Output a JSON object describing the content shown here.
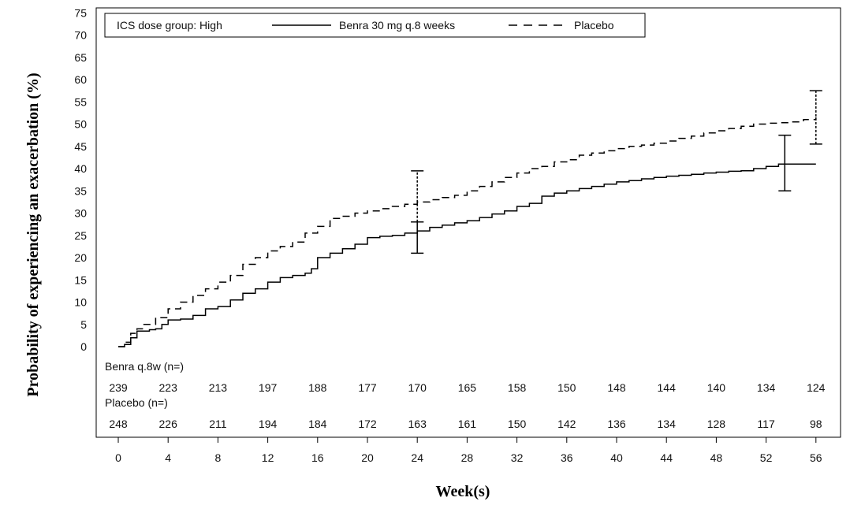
{
  "chart_data": {
    "type": "line",
    "xlabel": "Week(s)",
    "ylabel": "Probability of experiencing an exacerbation (%)",
    "xlim": [
      0,
      57
    ],
    "ylim": [
      0,
      75
    ],
    "x_ticks": [
      0,
      4,
      8,
      12,
      16,
      20,
      24,
      28,
      32,
      36,
      40,
      44,
      48,
      52,
      56
    ],
    "y_ticks": [
      0,
      5,
      10,
      15,
      20,
      25,
      30,
      35,
      40,
      45,
      50,
      55,
      60,
      65,
      70,
      75
    ],
    "legend": {
      "title": "ICS dose group: High",
      "placement": "top-left",
      "entries": [
        {
          "label": "Benra 30 mg q.8 weeks",
          "style": "solid"
        },
        {
          "label": "Placebo",
          "style": "dashed"
        }
      ]
    },
    "series": [
      {
        "name": "Benra 30 mg q.8 weeks",
        "style": "solid",
        "color": "#000000",
        "x": [
          0,
          0.5,
          1,
          1.5,
          2.5,
          3,
          3.5,
          4,
          5,
          6,
          7,
          8,
          9,
          10,
          11,
          12,
          13,
          14,
          15,
          15.5,
          16,
          17,
          18,
          19,
          20,
          21,
          22,
          23,
          24,
          25,
          26,
          27,
          28,
          29,
          30,
          31,
          32,
          33,
          34,
          35,
          36,
          37,
          38,
          39,
          40,
          41,
          42,
          43,
          44,
          45,
          46,
          47,
          48,
          49,
          50,
          51,
          52,
          53,
          54,
          55,
          56
        ],
        "y": [
          0,
          0.5,
          2,
          3.5,
          3.8,
          4,
          5,
          6,
          6.2,
          7,
          8.5,
          9,
          10.5,
          12,
          13,
          14.5,
          15.5,
          16,
          16.5,
          17.5,
          20,
          21,
          22,
          23,
          24.5,
          24.8,
          25,
          25.5,
          26,
          26.8,
          27.3,
          27.8,
          28.3,
          29,
          29.8,
          30.5,
          31.5,
          32.2,
          33.8,
          34.5,
          35,
          35.5,
          36,
          36.5,
          37,
          37.3,
          37.7,
          38,
          38.3,
          38.5,
          38.7,
          39,
          39.2,
          39.4,
          39.5,
          40,
          40.5,
          41,
          41,
          41,
          41
        ]
      },
      {
        "name": "Placebo",
        "style": "dashed",
        "color": "#000000",
        "x": [
          0,
          0.5,
          1,
          1.5,
          2,
          3,
          4,
          5,
          6,
          7,
          8,
          9,
          10,
          11,
          12,
          13,
          14,
          15,
          16,
          17,
          18,
          19,
          20,
          21,
          22,
          23,
          24,
          25,
          26,
          27,
          28,
          29,
          30,
          31,
          32,
          33,
          34,
          35,
          36,
          37,
          38,
          39,
          40,
          41,
          42,
          43,
          44,
          45,
          46,
          47,
          48,
          49,
          50,
          51,
          52,
          53,
          54,
          55,
          56
        ],
        "y": [
          0,
          1,
          3,
          4,
          5,
          6.5,
          8.5,
          10,
          11.5,
          13,
          14.5,
          16,
          18.5,
          20,
          21.5,
          22.5,
          23.5,
          25.5,
          27,
          28.8,
          29.3,
          30,
          30.5,
          31,
          31.5,
          32,
          32.5,
          33,
          33.5,
          34,
          35,
          36,
          37,
          38,
          39,
          40,
          40.5,
          41.5,
          42,
          43,
          43.5,
          44,
          44.5,
          45,
          45.3,
          45.7,
          46.2,
          46.8,
          47.3,
          48,
          48.5,
          49,
          49.5,
          50,
          50.2,
          50.3,
          50.5,
          51,
          51.5
        ]
      }
    ],
    "error_bars": [
      {
        "series": "Benra 30 mg q.8 weeks",
        "x": 24,
        "y": 26.5,
        "low": 21,
        "high": 28
      },
      {
        "series": "Placebo",
        "x": 24,
        "y": 32.5,
        "low": 28,
        "high": 39.5
      },
      {
        "series": "Benra 30 mg q.8 weeks",
        "x": 53.5,
        "y": 41,
        "low": 35,
        "high": 47.5
      },
      {
        "series": "Placebo",
        "x": 56,
        "y": 51.5,
        "low": 45.5,
        "high": 57.5
      }
    ],
    "risk_table": {
      "weeks": [
        0,
        4,
        8,
        12,
        16,
        20,
        24,
        28,
        32,
        36,
        40,
        44,
        48,
        52,
        56
      ],
      "rows": [
        {
          "label": "Benra q.8w (n=)",
          "values": [
            239,
            223,
            213,
            197,
            188,
            177,
            170,
            165,
            158,
            150,
            148,
            144,
            140,
            134,
            124
          ]
        },
        {
          "label": "Placebo (n=)",
          "values": [
            248,
            226,
            211,
            194,
            184,
            172,
            163,
            161,
            150,
            142,
            136,
            134,
            128,
            117,
            98
          ]
        }
      ]
    }
  }
}
